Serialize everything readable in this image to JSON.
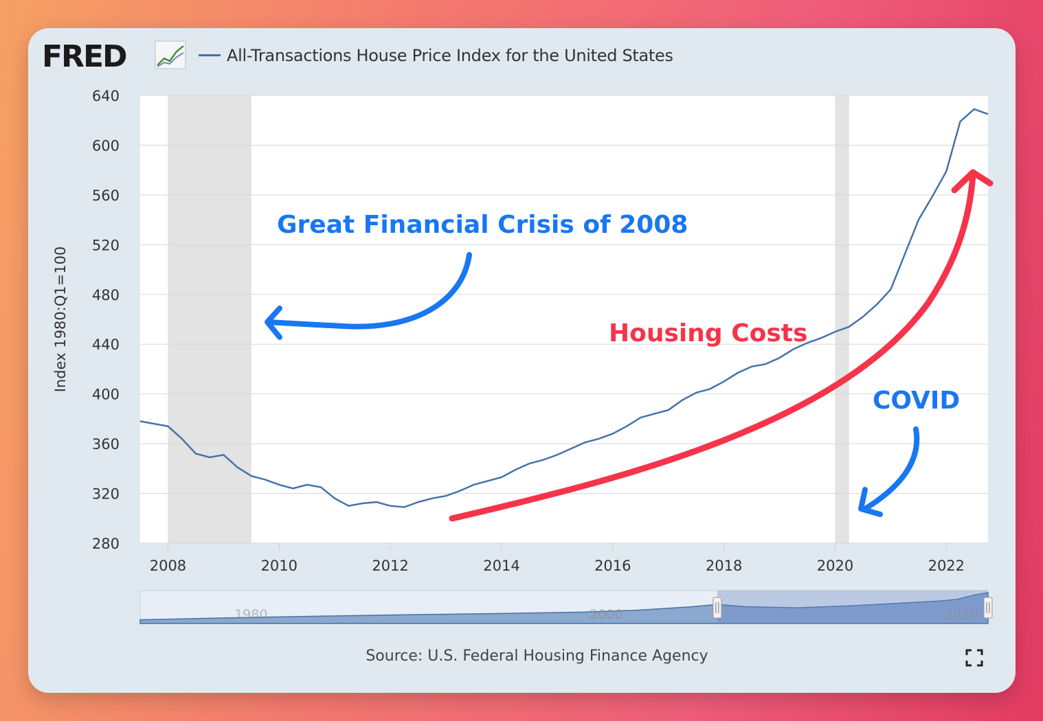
{
  "logo": {
    "text": "FRED",
    "mark": "®",
    "icon": "line-chart-icon"
  },
  "legend": {
    "series_name": "All-Transactions House Price Index for the United States",
    "color": "#4572a7"
  },
  "source": "Source: U.S. Federal Housing Finance Agency",
  "fullscreen_icon": "expand-icon",
  "annotations": {
    "gfc": {
      "text": "Great Financial Crisis of 2008",
      "color": "#1877f2"
    },
    "housing": {
      "text": "Housing Costs",
      "color": "#f5344a"
    },
    "covid": {
      "text": "COVID",
      "color": "#1877f2"
    }
  },
  "chart_data": {
    "type": "line",
    "title": "",
    "xlabel": "",
    "ylabel": "Index 1980:Q1=100",
    "xlim": [
      2007.5,
      2022.75
    ],
    "ylim": [
      280,
      640
    ],
    "yticks": [
      280,
      320,
      360,
      400,
      440,
      480,
      520,
      560,
      600,
      640
    ],
    "xticks": [
      "2008",
      "2010",
      "2012",
      "2014",
      "2016",
      "2018",
      "2020",
      "2022"
    ],
    "grid": true,
    "recessions": [
      [
        2008.0,
        2009.5
      ],
      [
        2020.0,
        2020.25
      ]
    ],
    "navigator": {
      "ticks": [
        "1980",
        "2000",
        "2020"
      ]
    },
    "series": [
      {
        "name": "All-Transactions House Price Index for the United States",
        "color": "#4572a7",
        "x": [
          2007.5,
          2007.75,
          2008.0,
          2008.25,
          2008.5,
          2008.75,
          2009.0,
          2009.25,
          2009.5,
          2009.75,
          2010.0,
          2010.25,
          2010.5,
          2010.75,
          2011.0,
          2011.25,
          2011.5,
          2011.75,
          2012.0,
          2012.25,
          2012.5,
          2012.75,
          2013.0,
          2013.25,
          2013.5,
          2013.75,
          2014.0,
          2014.25,
          2014.5,
          2014.75,
          2015.0,
          2015.25,
          2015.5,
          2015.75,
          2016.0,
          2016.25,
          2016.5,
          2016.75,
          2017.0,
          2017.25,
          2017.5,
          2017.75,
          2018.0,
          2018.25,
          2018.5,
          2018.75,
          2019.0,
          2019.25,
          2019.5,
          2019.75,
          2020.0,
          2020.25,
          2020.5,
          2020.75,
          2021.0,
          2021.25,
          2021.5,
          2021.75,
          2022.0,
          2022.25,
          2022.5,
          2022.75
        ],
        "values": [
          378,
          376,
          374,
          364,
          352,
          349,
          351,
          341,
          334,
          331,
          327,
          324,
          327,
          325,
          316,
          310,
          312,
          313,
          310,
          309,
          313,
          316,
          318,
          322,
          327,
          330,
          333,
          339,
          344,
          347,
          351,
          356,
          361,
          364,
          368,
          374,
          381,
          384,
          387,
          395,
          401,
          404,
          410,
          417,
          422,
          424,
          429,
          436,
          441,
          445,
          450,
          454,
          462,
          472,
          484,
          512,
          540,
          559,
          579,
          619,
          629,
          625
        ]
      }
    ]
  }
}
